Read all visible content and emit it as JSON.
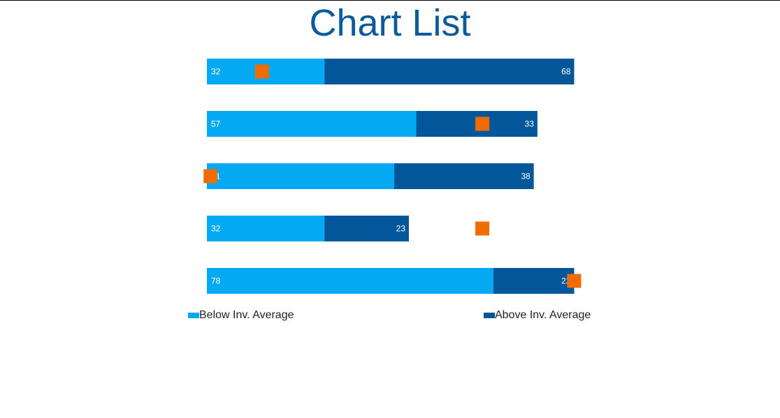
{
  "page": {
    "title": "Chart List"
  },
  "colors": {
    "below": "#04a9f4",
    "above": "#02579b",
    "marker": "#f06c00",
    "title": "#0a5a9c"
  },
  "legend": {
    "placement": "bottom",
    "below_label": "Below Inv. Average",
    "above_label": "Above Inv. Average"
  },
  "chart_data": {
    "type": "bar",
    "orientation": "horizontal",
    "stacked": true,
    "categories": [
      "",
      "",
      "",
      "",
      ""
    ],
    "series": [
      {
        "name": "Below Inv. Average",
        "values": [
          32,
          57,
          51,
          32,
          78
        ]
      },
      {
        "name": "Above Inv. Average",
        "values": [
          68,
          33,
          38,
          23,
          22
        ]
      }
    ],
    "markers": [
      15,
      75,
      1,
      75,
      100
    ],
    "xlim": [
      0,
      100
    ],
    "grid": false,
    "axes_visible": false
  }
}
